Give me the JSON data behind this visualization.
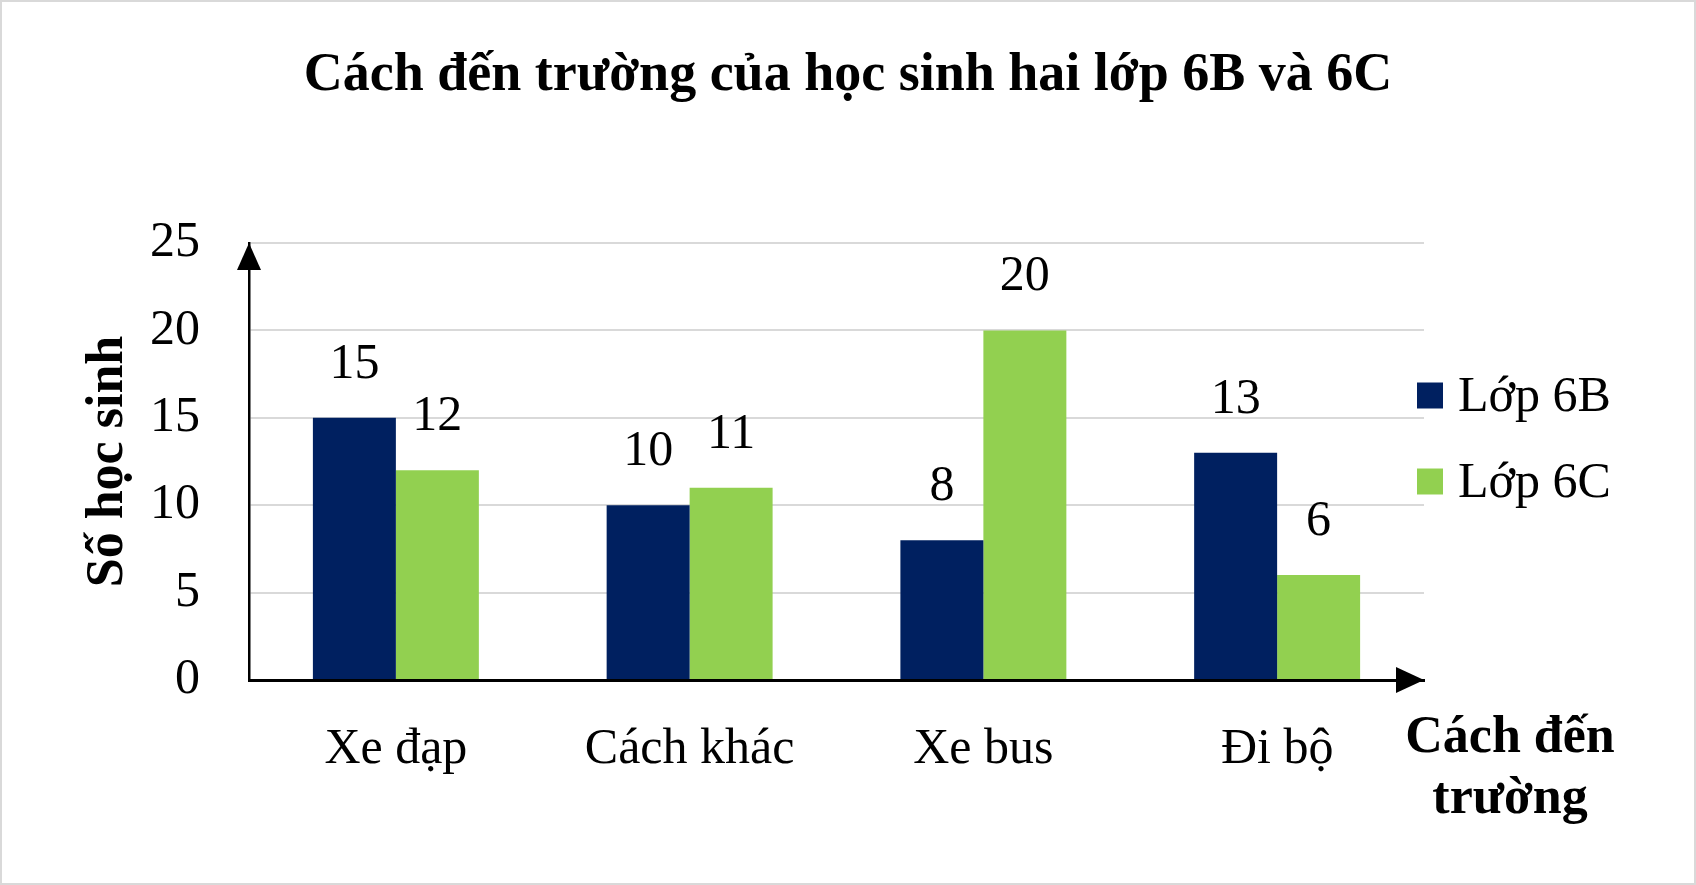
{
  "chart_data": {
    "type": "bar",
    "title": "Cách đến trường của học sinh hai lớp 6B và 6C",
    "xlabel": "Cách đến trường",
    "ylabel": "Số học sinh",
    "categories": [
      "Xe đạp",
      "Cách khác",
      "Xe bus",
      "Đi bộ"
    ],
    "series": [
      {
        "name": "Lớp 6B",
        "color": "#002060",
        "values": [
          15,
          10,
          8,
          13
        ]
      },
      {
        "name": "Lớp 6C",
        "color": "#92d050",
        "values": [
          12,
          11,
          20,
          6
        ]
      }
    ],
    "ylim": [
      0,
      25
    ],
    "yticks": [
      0,
      5,
      10,
      15,
      20,
      25
    ],
    "grid": "y",
    "legend": "right",
    "data_labels": true
  }
}
